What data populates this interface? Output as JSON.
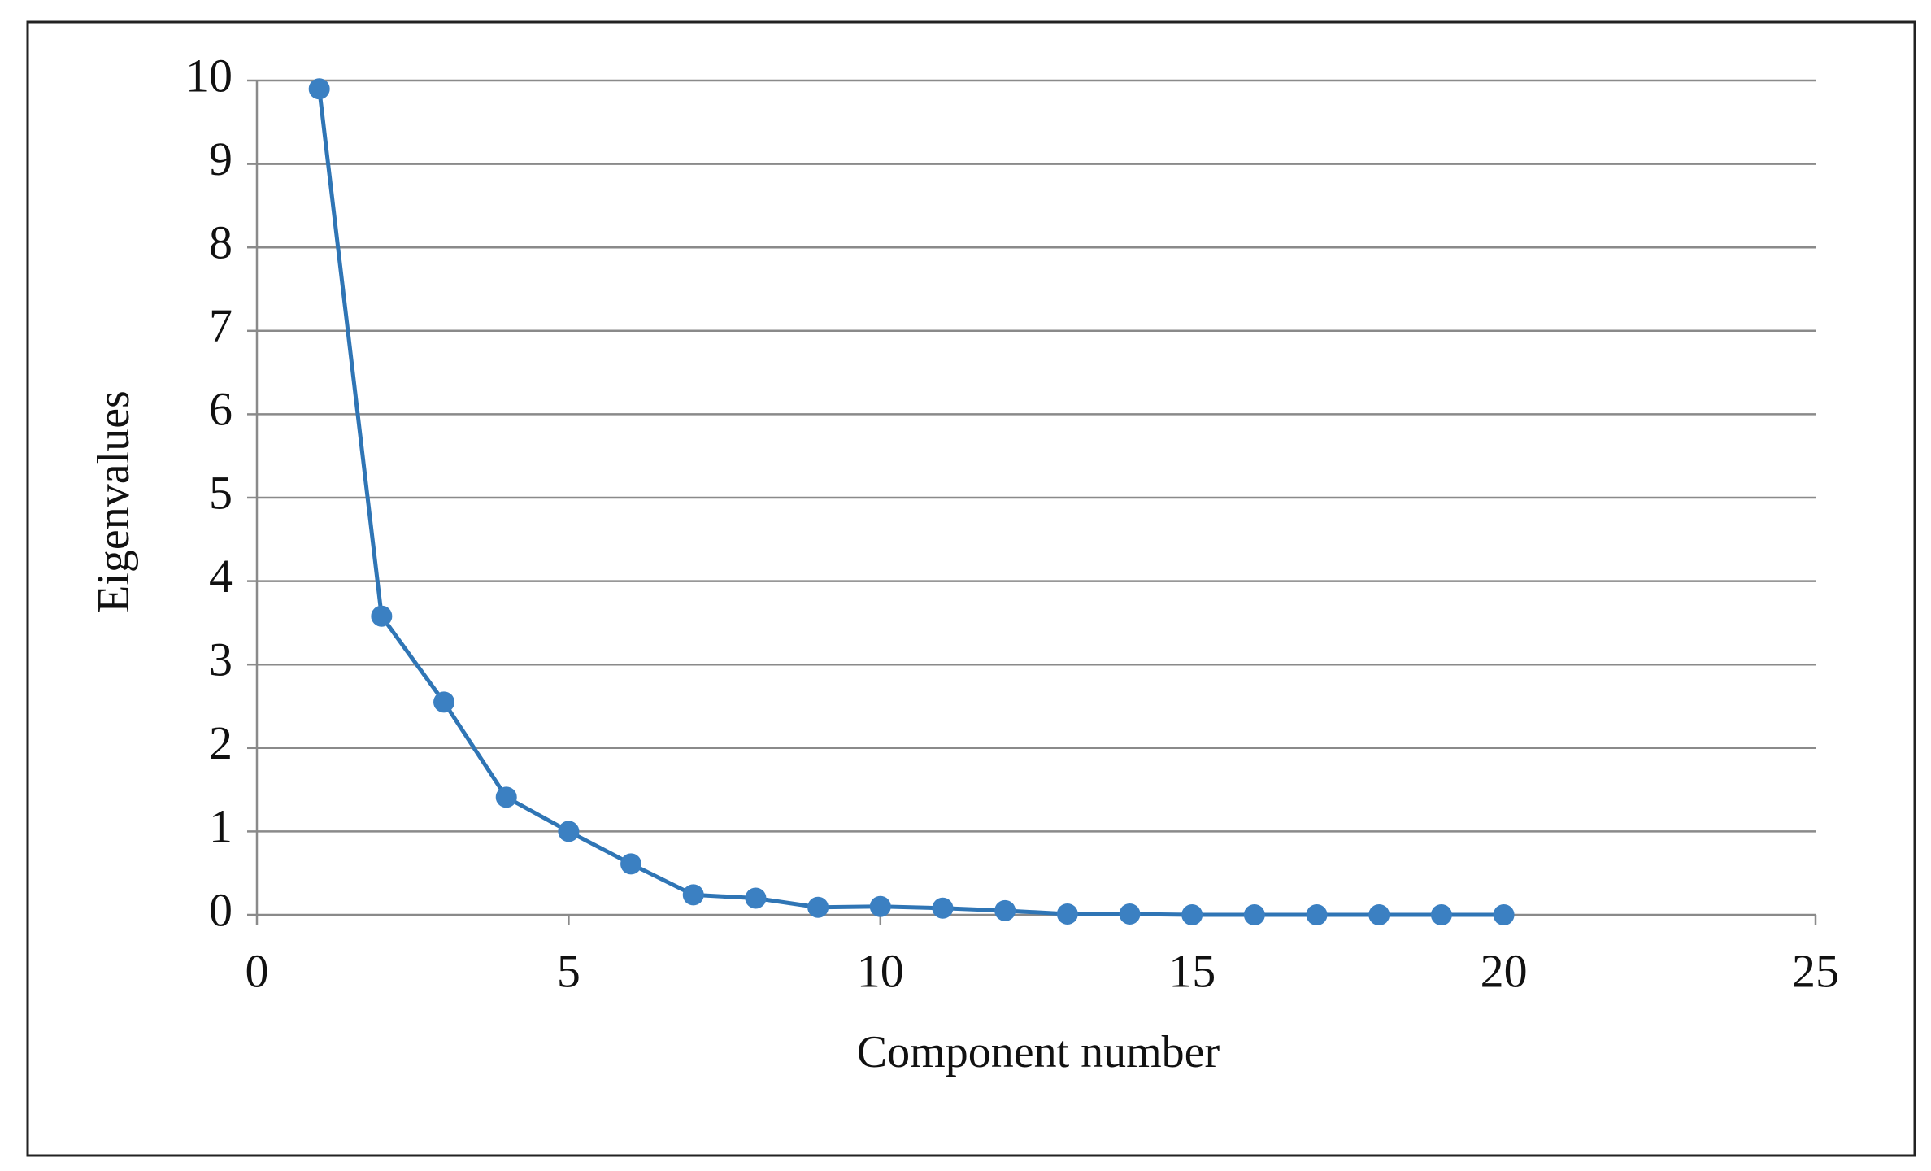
{
  "chart_data": {
    "type": "line",
    "x_label": "Component number",
    "y_label": "Eigenvalues",
    "x": [
      1,
      2,
      3,
      4,
      5,
      6,
      7,
      8,
      9,
      10,
      11,
      12,
      13,
      14,
      15,
      16,
      17,
      18,
      19,
      20
    ],
    "values": [
      9.9,
      3.58,
      2.55,
      1.41,
      1.0,
      0.61,
      0.24,
      0.2,
      0.09,
      0.1,
      0.08,
      0.05,
      0.01,
      0.01,
      0.0,
      0.0,
      0.0,
      0.0,
      0.0,
      0.0
    ],
    "color": "#2f75b5",
    "marker_color": "#3b80c2",
    "xlim": [
      0,
      25
    ],
    "xticks": [
      0,
      5,
      10,
      15,
      20,
      25
    ],
    "ylim": [
      0,
      10
    ],
    "yticks": [
      0,
      1,
      2,
      3,
      4,
      5,
      6,
      7,
      8,
      9,
      10
    ],
    "grid": true
  }
}
